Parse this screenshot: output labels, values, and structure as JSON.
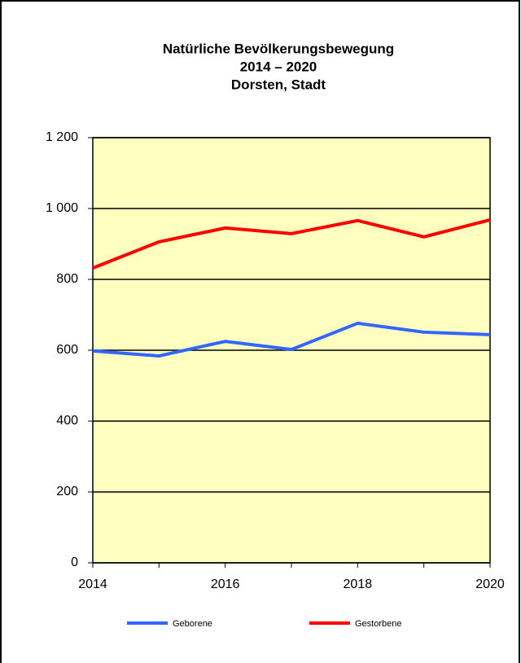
{
  "chart_data": {
    "type": "line",
    "title": [
      "Natürliche Bevölkerungsbewegung",
      "2014 – 2020",
      "Dorsten, Stadt"
    ],
    "x": [
      2014,
      2015,
      2016,
      2017,
      2018,
      2019,
      2020
    ],
    "series": [
      {
        "name": "Geborene",
        "color": "#3366ff",
        "values": [
          598,
          584,
          625,
          602,
          676,
          651,
          644
        ]
      },
      {
        "name": "Gestorbene",
        "color": "#ff0000",
        "values": [
          832,
          906,
          945,
          929,
          966,
          920,
          968
        ]
      }
    ],
    "xlim": [
      2014,
      2020
    ],
    "xticks": [
      2014,
      2016,
      2018,
      2020
    ],
    "ylim": [
      0,
      1200
    ],
    "yticks": [
      0,
      200,
      400,
      600,
      800,
      {
        "value": 1000,
        "label": "1 000"
      },
      {
        "value": 1200,
        "label": "1 200"
      }
    ],
    "grid": true,
    "legend": "bottom",
    "plot_background": "#ffffc0"
  }
}
